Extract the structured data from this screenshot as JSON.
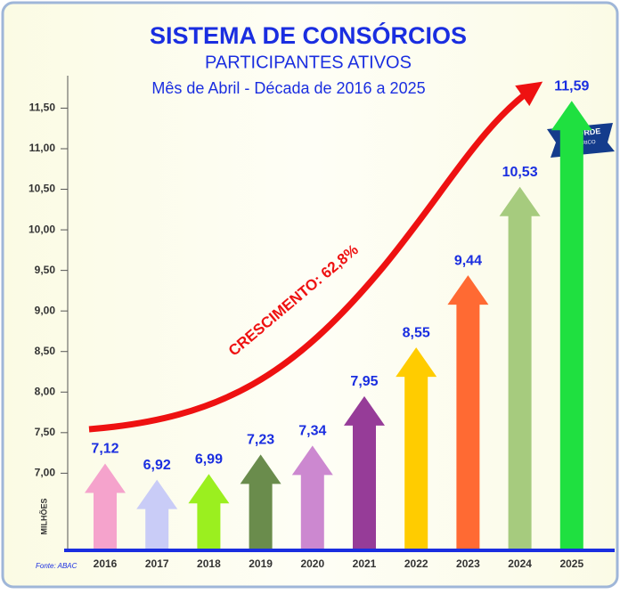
{
  "chart_data": {
    "type": "arrow-bar",
    "title": "SISTEMA DE CONSÓRCIOS",
    "subtitle": "PARTICIPANTES ATIVOS",
    "period": "Mês de Abril - Década de 2016 a 2025",
    "y_label": "MILHÕES",
    "annotation": "CRESCIMENTO: 62,8%",
    "badge": [
      "RECORDE",
      "HISTÓRICO"
    ],
    "source": "Fonte: ABAC",
    "categories": [
      "2016",
      "2017",
      "2018",
      "2019",
      "2020",
      "2021",
      "2022",
      "2023",
      "2024",
      "2025"
    ],
    "values": [
      7.12,
      6.92,
      6.99,
      7.23,
      7.34,
      7.95,
      8.55,
      9.44,
      10.53,
      11.59
    ],
    "value_labels": [
      "7,12",
      "6,92",
      "6,99",
      "7,23",
      "7,34",
      "7,95",
      "8,55",
      "9,44",
      "10,53",
      "11,59"
    ],
    "colors": [
      "#f5a3cc",
      "#c9ccf7",
      "#9bef1f",
      "#6a8c4c",
      "#cc88d0",
      "#963c98",
      "#ffcc00",
      "#ff6a33",
      "#a6cb7e",
      "#1fe040"
    ],
    "ylim": [
      6.06,
      11.9
    ],
    "yticks": [
      {
        "value": 7,
        "label": "7,00"
      },
      {
        "value": 7.5,
        "label": "7,50"
      },
      {
        "value": 8,
        "label": "8,00"
      },
      {
        "value": 8.5,
        "label": "8,50"
      },
      {
        "value": 9,
        "label": "9,00"
      },
      {
        "value": 9.5,
        "label": "9,50"
      },
      {
        "value": 10,
        "label": "10,00"
      },
      {
        "value": 10.5,
        "label": "10,50"
      },
      {
        "value": 11,
        "label": "11,00"
      },
      {
        "value": 11.5,
        "label": "11,50"
      }
    ]
  }
}
